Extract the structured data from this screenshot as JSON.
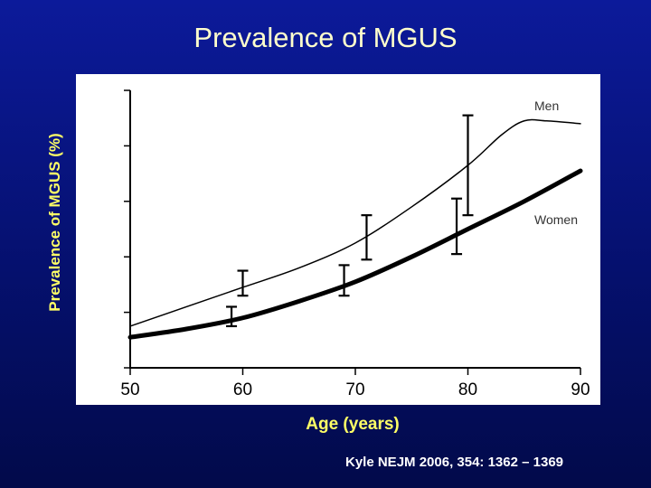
{
  "slide": {
    "title": "Prevalence of MGUS",
    "citation": "Kyle NEJM 2006, 354: 1362 – 1369"
  },
  "chart_data": {
    "type": "line",
    "title": "Prevalence of MGUS",
    "xlabel": "Age (years)",
    "ylabel": "Prevalence of MGUS (%)",
    "xlim": [
      50,
      90
    ],
    "ylim": [
      0,
      10
    ],
    "xticks": [
      50,
      60,
      70,
      80,
      90
    ],
    "yticks": [
      0,
      2,
      4,
      6,
      8,
      10
    ],
    "grid": false,
    "legend": "inline labels at right",
    "series": [
      {
        "name": "Men",
        "color": "#000000",
        "style": "thin",
        "x": [
          50,
          55,
          60,
          65,
          70,
          75,
          80,
          83,
          85,
          87,
          90
        ],
        "y": [
          1.5,
          2.2,
          2.9,
          3.6,
          4.5,
          5.8,
          7.3,
          8.4,
          8.9,
          8.9,
          8.8
        ],
        "error_bars": [
          {
            "x": 60,
            "low": 2.6,
            "high": 3.5
          },
          {
            "x": 71,
            "low": 3.9,
            "high": 5.5
          },
          {
            "x": 80,
            "low": 5.5,
            "high": 9.1
          }
        ]
      },
      {
        "name": "Women",
        "color": "#000000",
        "style": "thick",
        "x": [
          50,
          55,
          60,
          65,
          70,
          75,
          80,
          85,
          90
        ],
        "y": [
          1.1,
          1.4,
          1.8,
          2.4,
          3.1,
          4.0,
          5.0,
          6.0,
          7.1
        ],
        "error_bars": [
          {
            "x": 59,
            "low": 1.5,
            "high": 2.2
          },
          {
            "x": 69,
            "low": 2.6,
            "high": 3.7
          },
          {
            "x": 79,
            "low": 4.1,
            "high": 6.1
          }
        ]
      }
    ]
  }
}
